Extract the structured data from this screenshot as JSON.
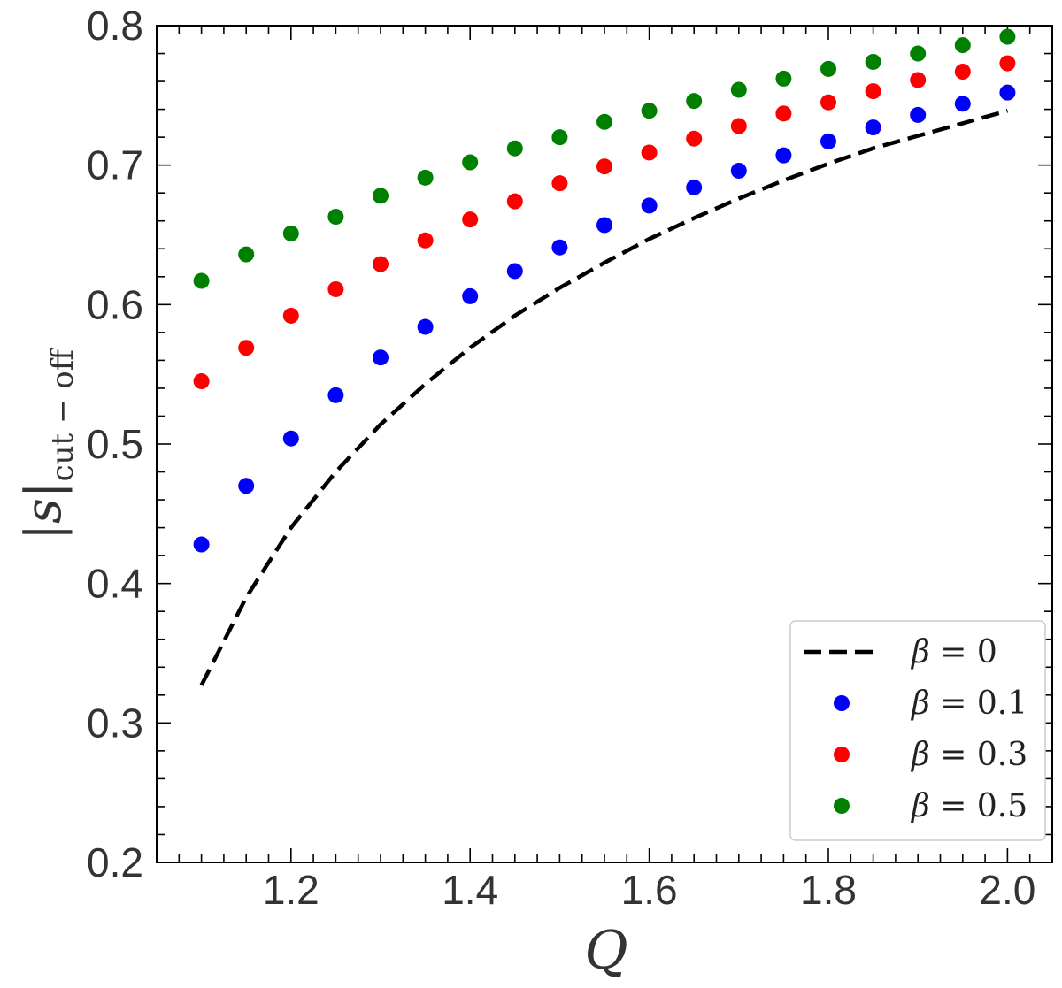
{
  "chart_data": {
    "type": "scatter",
    "title": "",
    "xlabel": "Q",
    "ylabel": {
      "main": "|s|",
      "sub": "cut − off"
    },
    "xlim": [
      1.05,
      2.05
    ],
    "ylim": [
      0.2,
      0.8
    ],
    "x_ticks": [
      1.2,
      1.4,
      1.6,
      1.8,
      2.0
    ],
    "x_tick_labels": [
      "1.2",
      "1.4",
      "1.6",
      "1.8",
      "2.0"
    ],
    "y_ticks": [
      0.2,
      0.3,
      0.4,
      0.5,
      0.6,
      0.7,
      0.8
    ],
    "y_tick_labels": [
      "0.2",
      "0.3",
      "0.4",
      "0.5",
      "0.6",
      "0.7",
      "0.8"
    ],
    "grid": false,
    "legend_position": "bottom-right",
    "x": [
      1.1,
      1.15,
      1.2,
      1.25,
      1.3,
      1.35,
      1.4,
      1.45,
      1.5,
      1.55,
      1.6,
      1.65,
      1.7,
      1.75,
      1.8,
      1.85,
      1.9,
      1.95,
      2.0
    ],
    "series": [
      {
        "name": "β = 0",
        "style": "dashed-line",
        "color": "#000000",
        "values": [
          0.327,
          0.39,
          0.44,
          0.48,
          0.514,
          0.543,
          0.569,
          0.592,
          0.612,
          0.63,
          0.647,
          0.662,
          0.676,
          0.689,
          0.701,
          0.712,
          0.721,
          0.73,
          0.739
        ]
      },
      {
        "name": "β = 0.1",
        "style": "dots",
        "color": "#0000ff",
        "values": [
          0.428,
          0.47,
          0.504,
          0.535,
          0.562,
          0.584,
          0.606,
          0.624,
          0.641,
          0.657,
          0.671,
          0.684,
          0.696,
          0.707,
          0.717,
          0.727,
          0.736,
          0.744,
          0.752
        ]
      },
      {
        "name": "β = 0.3",
        "style": "dots",
        "color": "#ff0000",
        "values": [
          0.545,
          0.569,
          0.592,
          0.611,
          0.629,
          0.646,
          0.661,
          0.674,
          0.687,
          0.699,
          0.709,
          0.719,
          0.728,
          0.737,
          0.745,
          0.753,
          0.761,
          0.767,
          0.773
        ]
      },
      {
        "name": "β = 0.5",
        "style": "dots",
        "color": "#008000",
        "values": [
          0.617,
          0.636,
          0.651,
          0.663,
          0.678,
          0.691,
          0.702,
          0.712,
          0.72,
          0.731,
          0.739,
          0.746,
          0.754,
          0.762,
          0.769,
          0.774,
          0.78,
          0.786,
          0.792
        ]
      }
    ],
    "legend": [
      {
        "greek": "β",
        "text": " = 0"
      },
      {
        "greek": "β",
        "text": " = 0.1"
      },
      {
        "greek": "β",
        "text": " = 0.3"
      },
      {
        "greek": "β",
        "text": " = 0.5"
      }
    ]
  }
}
